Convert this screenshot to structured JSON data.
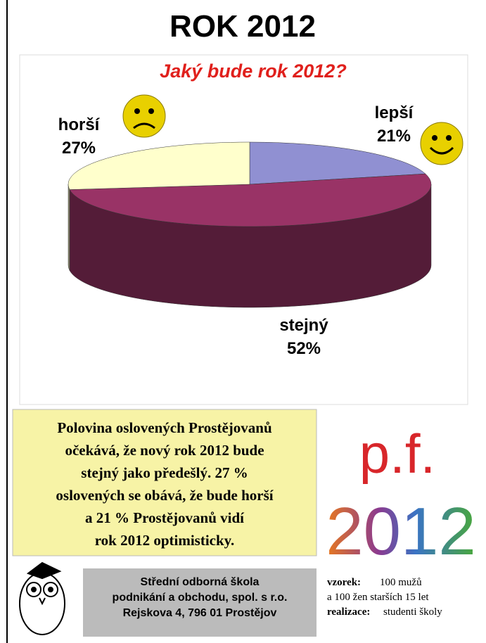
{
  "header": {
    "title": "ROK 2012"
  },
  "chart_data": {
    "type": "pie",
    "title": "Jaký bude rok 2012?",
    "categories": [
      "lepší",
      "stejný",
      "horší"
    ],
    "values": [
      21,
      52,
      27
    ],
    "value_labels": [
      "21%",
      "52%",
      "27%"
    ],
    "colors": [
      "#9090d2",
      "#993366",
      "#ffffcc"
    ]
  },
  "summary": {
    "lines": [
      "Polovina oslovených Prostějovanů",
      "očekává, že nový rok 2012 bude",
      "stejný jako předešlý. 27 %",
      "oslovených se obává, že bude horší",
      "a 21 % Prostějovanů vidí",
      "rok 2012 optimisticky."
    ]
  },
  "greeting": {
    "top": "p.f.",
    "year": "2012"
  },
  "school": {
    "lines": [
      "Střední odborná škola",
      "podnikání a obchodu, spol. s r.o.",
      "Rejskova 4, 796 01 Prostějov"
    ]
  },
  "sample": {
    "label": "vzorek:",
    "text": "100 mužů",
    "line2": "a 100 žen starších 15 let",
    "label2": "realizace:",
    "text2": "studenti školy"
  }
}
